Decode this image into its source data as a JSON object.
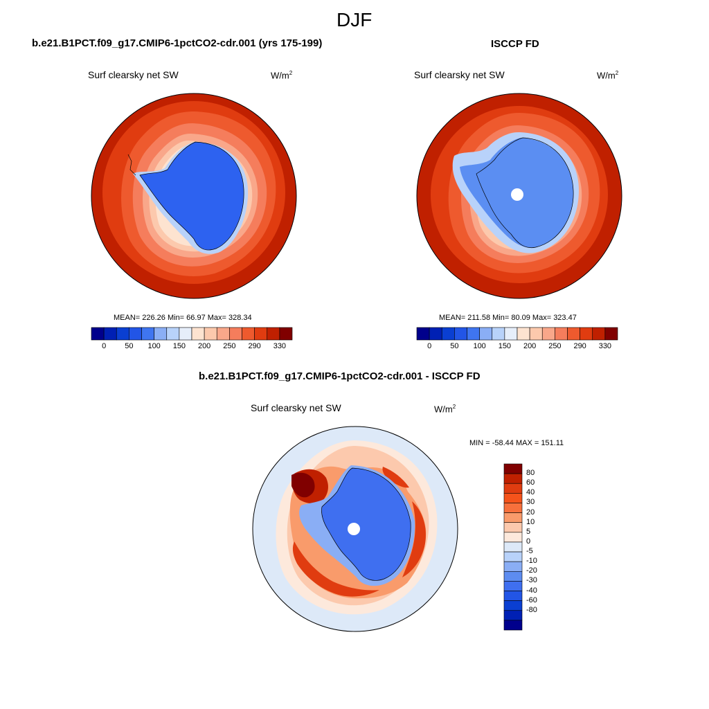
{
  "figure": {
    "season": "DJF"
  },
  "panels": [
    {
      "case_title": "b.e21.B1PCT.f09_g17.CMIP6-1pctCO2-cdr.001 (yrs 175-199)",
      "variable": "Surf clearsky net SW",
      "units_base": "W/m",
      "units_exp": "2",
      "stats": "MEAN= 226.26  Min=  66.97  Max= 328.34"
    },
    {
      "case_title": "ISCCP FD",
      "variable": "Surf clearsky net SW",
      "units_base": "W/m",
      "units_exp": "2",
      "stats": "MEAN= 211.58  Min=  80.09  Max= 323.47"
    },
    {
      "case_title": "b.e21.B1PCT.f09_g17.CMIP6-1pctCO2-cdr.001 - ISCCP FD",
      "variable": "Surf clearsky net SW",
      "units_base": "W/m",
      "units_exp": "2",
      "stats": "MIN = -58.44 MAX = 151.11"
    }
  ],
  "colorbar_abs": {
    "colors": [
      "#00008c",
      "#0020b4",
      "#0a3fd2",
      "#2255e6",
      "#3f75f0",
      "#8aaef5",
      "#b8d2fa",
      "#e6eefa",
      "#fde3d0",
      "#fcc9ad",
      "#f9a78a",
      "#f57d5c",
      "#ee5a2e",
      "#e03c10",
      "#c02000",
      "#800000"
    ],
    "tick_labels": [
      "0",
      "50",
      "100",
      "150",
      "200",
      "250",
      "290",
      "330"
    ]
  },
  "colorbar_diff": {
    "colors": [
      "#800000",
      "#c02000",
      "#e03c10",
      "#f5531b",
      "#f7703c",
      "#f99b6b",
      "#fcc9ad",
      "#fde9dc",
      "#dde9f8",
      "#b8d2fa",
      "#8aaef5",
      "#5d8cf0",
      "#3f6ff0",
      "#2255e6",
      "#0a3fd2",
      "#0020b4",
      "#00008c"
    ],
    "tick_labels": [
      "80",
      "60",
      "40",
      "30",
      "20",
      "10",
      "5",
      "0",
      "-5",
      "-10",
      "-20",
      "-30",
      "-40",
      "-60",
      "-80"
    ]
  },
  "chart_data": [
    {
      "type": "heatmap",
      "title": "b.e21.B1PCT.f09_g17.CMIP6-1pctCO2-cdr.001 (yrs 175-199)",
      "projection": "south polar stereographic",
      "variable": "Surf clearsky net SW",
      "units": "W/m2",
      "mean": 226.26,
      "min": 66.97,
      "max": 328.34,
      "levels": [
        0,
        25,
        50,
        75,
        100,
        125,
        150,
        175,
        200,
        225,
        250,
        270,
        290,
        310,
        330
      ]
    },
    {
      "type": "heatmap",
      "title": "ISCCP FD",
      "projection": "south polar stereographic",
      "variable": "Surf clearsky net SW",
      "units": "W/m2",
      "mean": 211.58,
      "min": 80.09,
      "max": 323.47,
      "levels": [
        0,
        25,
        50,
        75,
        100,
        125,
        150,
        175,
        200,
        225,
        250,
        270,
        290,
        310,
        330
      ]
    },
    {
      "type": "heatmap",
      "title": "b.e21.B1PCT.f09_g17.CMIP6-1pctCO2-cdr.001 - ISCCP FD",
      "projection": "south polar stereographic",
      "variable": "Surf clearsky net SW",
      "units": "W/m2",
      "min": -58.44,
      "max": 151.11,
      "levels": [
        -80,
        -60,
        -40,
        -30,
        -20,
        -10,
        -5,
        0,
        5,
        10,
        20,
        30,
        40,
        60,
        80
      ]
    }
  ]
}
